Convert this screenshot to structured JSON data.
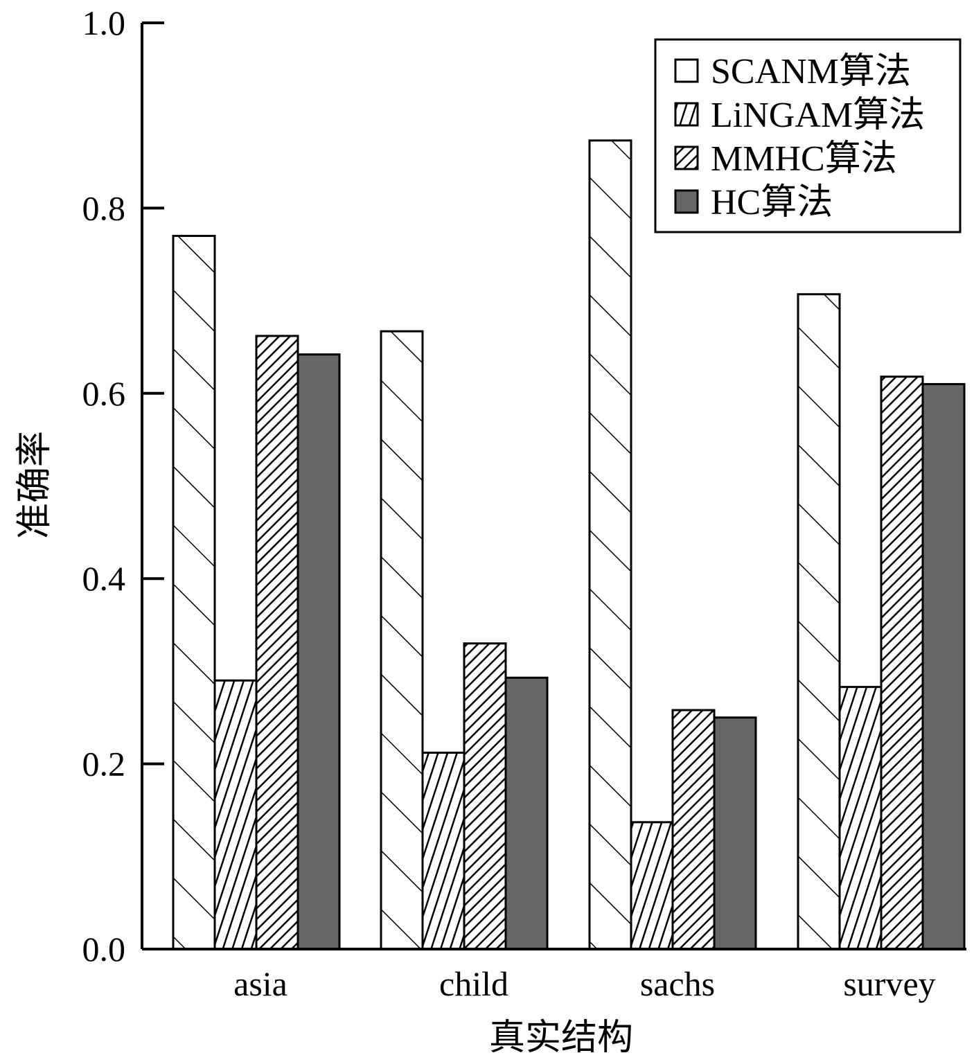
{
  "chart_data": {
    "type": "bar",
    "title": "",
    "xlabel": "真实结构",
    "ylabel": "准确率",
    "categories": [
      "asia",
      "child",
      "sachs",
      "survey"
    ],
    "ylim": [
      0,
      1.0
    ],
    "yticks": [
      "0.0",
      "0.2",
      "0.4",
      "0.6",
      "0.8",
      "1.0"
    ],
    "grid": false,
    "legend_position": "top-right",
    "series": [
      {
        "name": "SCANM算法",
        "values": [
          0.77,
          0.667,
          0.873,
          0.707
        ],
        "pattern": "wide-diagonal-up",
        "color": "#ffffff"
      },
      {
        "name": "LiNGAM算法",
        "values": [
          0.29,
          0.212,
          0.137,
          0.283
        ],
        "pattern": "dense-diagonal-up",
        "color": "#ffffff"
      },
      {
        "name": "MMHC算法",
        "values": [
          0.662,
          0.33,
          0.258,
          0.618
        ],
        "pattern": "dense-diagonal-down",
        "color": "#ffffff"
      },
      {
        "name": "HC算法",
        "values": [
          0.642,
          0.293,
          0.25,
          0.61
        ],
        "pattern": "solid",
        "color": "#666666"
      }
    ]
  }
}
